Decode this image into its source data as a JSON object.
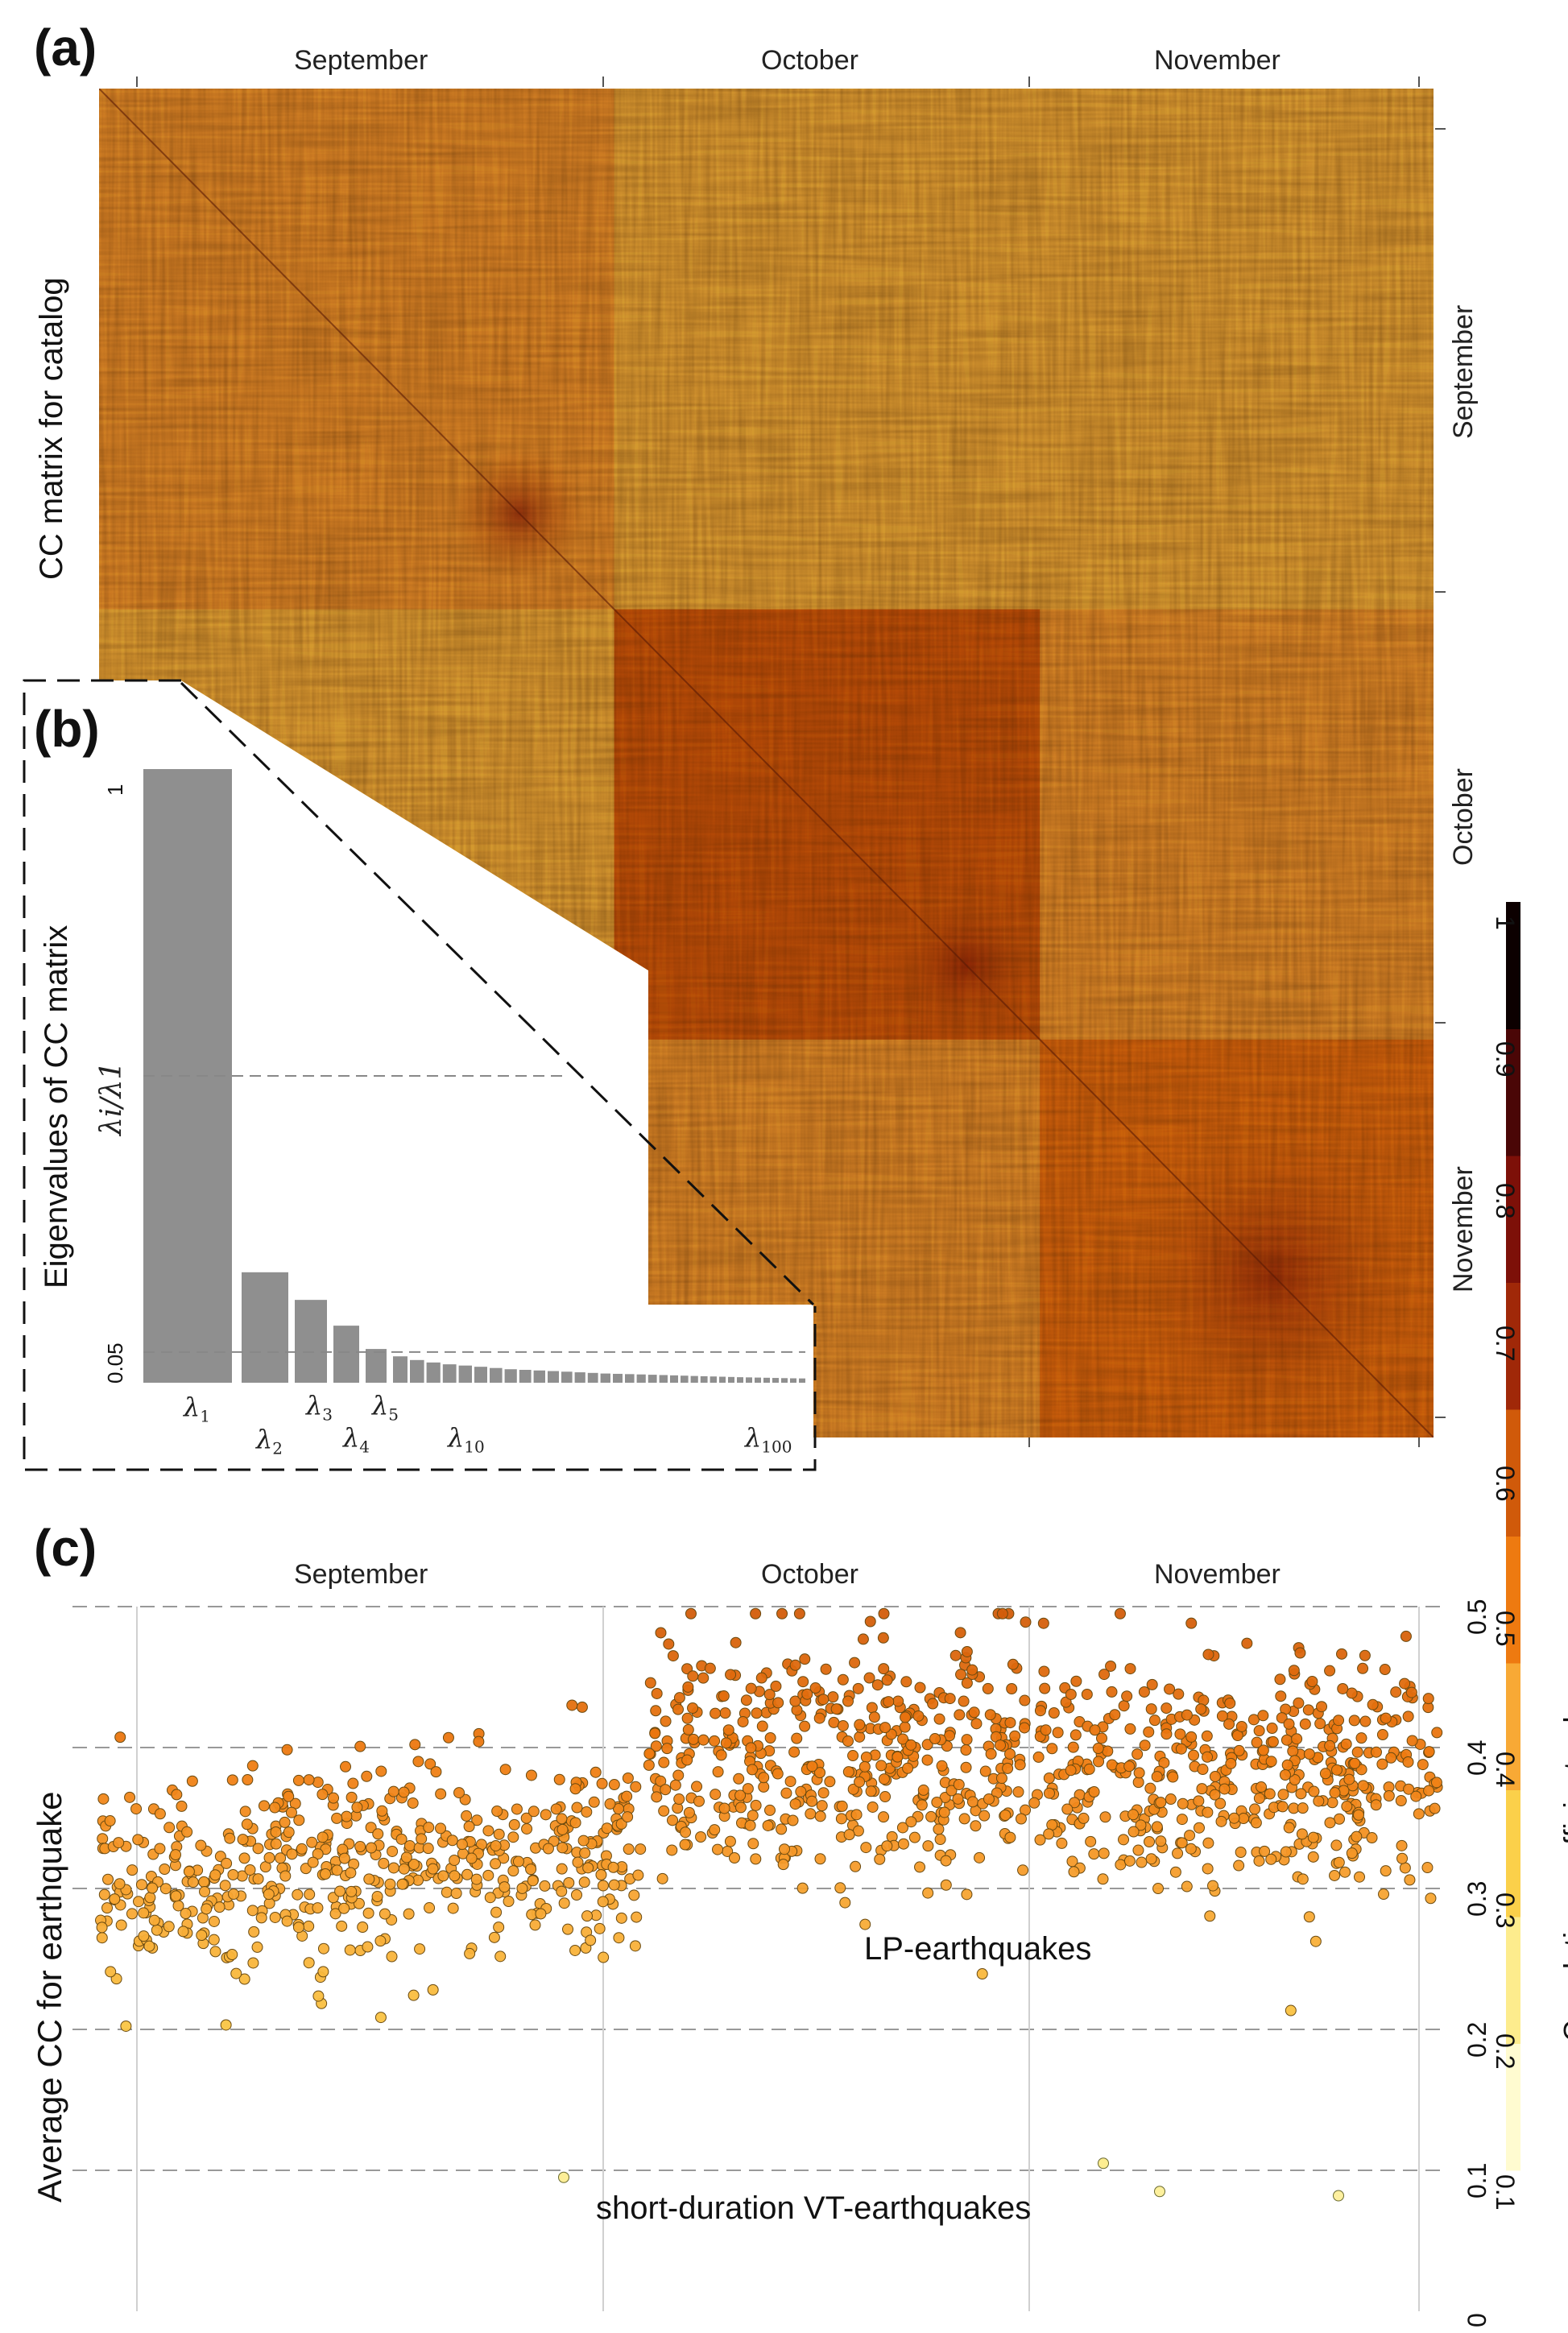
{
  "chart_data": [
    {
      "panel": "(a)",
      "type": "heatmap",
      "title": "CC matrix for catalog",
      "x_tick_labels": [
        "September",
        "October",
        "November"
      ],
      "y_tick_labels": [
        "September",
        "October",
        "November"
      ],
      "value_range": [
        0,
        1
      ],
      "colormap": "yellow-orange-red-black",
      "blocks": [
        {
          "period": "September",
          "mean_cc": 0.33
        },
        {
          "period": "October",
          "mean_cc": 0.55
        },
        {
          "period": "November",
          "mean_cc": 0.45
        }
      ]
    },
    {
      "panel": "(b)",
      "type": "bar",
      "title": "Eigenvalues of CC matrix",
      "ylabel": "λi/λ1",
      "y_ticks": [
        "0.05",
        "1"
      ],
      "reference_lines": [
        0.05,
        0.5
      ],
      "category_labels": [
        {
          "base": "λ",
          "sub": "1"
        },
        {
          "base": "λ",
          "sub": "2"
        },
        {
          "base": "λ",
          "sub": "3"
        },
        {
          "base": "λ",
          "sub": "4"
        },
        {
          "base": "λ",
          "sub": "5"
        },
        {
          "base": "λ",
          "sub": "10"
        },
        {
          "base": "λ",
          "sub": "100"
        }
      ],
      "values": [
        1.0,
        0.18,
        0.135,
        0.093,
        0.055,
        0.043,
        0.037,
        0.033,
        0.03,
        0.028,
        0.026,
        0.024,
        0.022,
        0.021,
        0.02,
        0.019,
        0.018,
        0.017,
        0.016,
        0.015,
        0.0145,
        0.014,
        0.0135,
        0.013,
        0.0125,
        0.012,
        0.0115,
        0.011,
        0.0106,
        0.0102,
        0.0098,
        0.0094,
        0.009,
        0.0087,
        0.0084,
        0.0081,
        0.0078,
        0.0075,
        0.0072,
        0.007
      ]
    },
    {
      "panel": "(c)",
      "type": "scatter",
      "ylabel": "Average CC for earthquake",
      "x_tick_labels": [
        "September",
        "October",
        "November"
      ],
      "y_ticks": [
        "0",
        "0.1",
        "0.2",
        "0.3",
        "0.4",
        "0.5"
      ],
      "ylim": [
        0,
        0.5
      ],
      "clusters": [
        {
          "period": "September",
          "cc_center": 0.3,
          "cc_spread": 0.05
        },
        {
          "period": "October",
          "cc_center": 0.39,
          "cc_spread": 0.06
        },
        {
          "period": "November",
          "cc_center": 0.38,
          "cc_spread": 0.05
        }
      ],
      "outliers_cc": [
        0.095,
        0.105,
        0.085,
        0.082
      ],
      "annotations": [
        "LP-earthquakes",
        "short-duration VT-earthquakes"
      ]
    },
    {
      "type": "colorbar",
      "label": "Correlation coefficient value",
      "ticks": [
        "0.1",
        "0.2",
        "0.3",
        "0.4",
        "0.5",
        "0.6",
        "0.7",
        "0.8",
        "0.9",
        "1"
      ],
      "colors": [
        "#fffbd0",
        "#fdec8d",
        "#fbd04a",
        "#f8a935",
        "#ee7a10",
        "#d05a0a",
        "#a02808",
        "#7d1008",
        "#4a0606",
        "#0c0000"
      ]
    }
  ]
}
